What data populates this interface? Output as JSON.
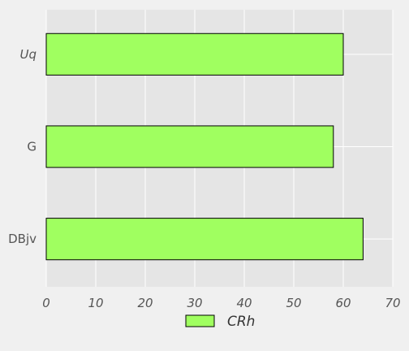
{
  "chart_data": {
    "type": "bar",
    "orientation": "horizontal",
    "categories": [
      "Uq",
      "G",
      "DBjv"
    ],
    "series": [
      {
        "name": "CRh",
        "values": [
          60,
          58,
          64
        ]
      }
    ],
    "xlim": [
      0,
      70
    ],
    "x_ticks": [
      0,
      10,
      20,
      30,
      40,
      50,
      60,
      70
    ],
    "grid": true,
    "legend_position": "bottom-center",
    "colors": {
      "background": "#f0f0f0",
      "plot_background": "#e5e5e5",
      "bar_fill": "#a0ff60",
      "bar_edge": "#000000",
      "grid": "#ffffff"
    }
  }
}
